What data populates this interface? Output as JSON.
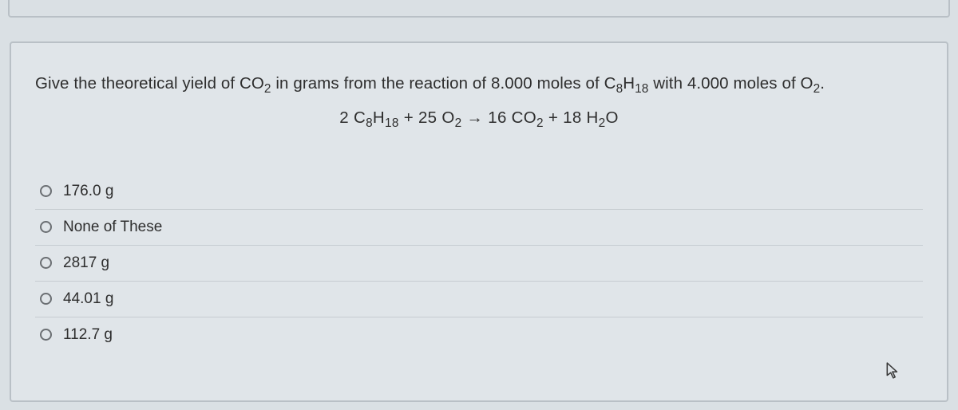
{
  "question": {
    "prompt_html": "Give the theoretical yield of CO<sub>2</sub> in grams from the reaction of 8.000 moles of C<sub>8</sub>H<sub>18</sub> with 4.000 moles of O<sub>2</sub>.",
    "equation_html": "2 C<sub>8</sub>H<sub>18</sub> + 25 O<sub>2</sub>  →  16 CO<sub>2</sub> + 18 H<sub>2</sub>O"
  },
  "options": [
    {
      "label": "176.0 g"
    },
    {
      "label": "None of These"
    },
    {
      "label": "2817 g"
    },
    {
      "label": "44.01 g"
    },
    {
      "label": "112.7 g"
    }
  ],
  "styles": {
    "page_bg": "#dae0e4",
    "card_bg": "#e0e5e9",
    "border_color": "#b9c0c6",
    "divider_color": "#c6ccd1",
    "text_color": "#2e2e2e",
    "radio_border": "#6b6f73",
    "question_fontsize": 20.5,
    "option_fontsize": 19
  }
}
